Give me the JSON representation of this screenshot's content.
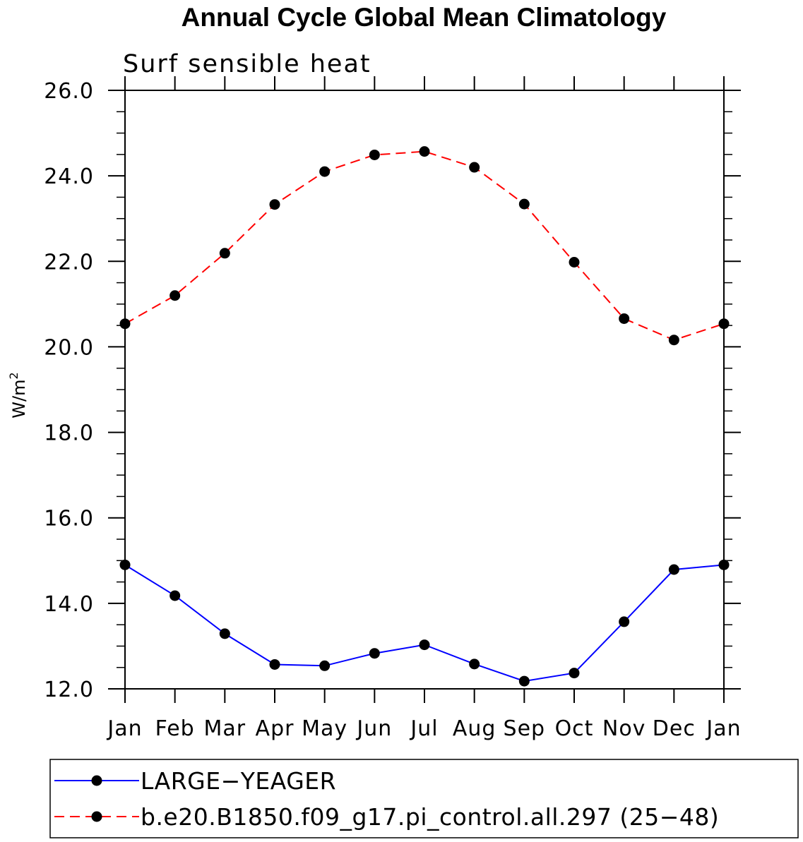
{
  "chart_data": {
    "type": "line",
    "title": "Annual Cycle Global Mean Climatology",
    "subtitle": "Surf sensible heat",
    "ylabel": "W/m",
    "ylabel_superscript": "2",
    "xlabel": "",
    "categories": [
      "Jan",
      "Feb",
      "Mar",
      "Apr",
      "May",
      "Jun",
      "Jul",
      "Aug",
      "Sep",
      "Oct",
      "Nov",
      "Dec",
      "Jan"
    ],
    "ylim": [
      12.0,
      26.0
    ],
    "yticks": [
      "12.0",
      "14.0",
      "16.0",
      "18.0",
      "20.0",
      "22.0",
      "24.0",
      "26.0"
    ],
    "grid": false,
    "legend_position": "bottom",
    "series": [
      {
        "name": "LARGE−YEAGER",
        "color": "#0000ff",
        "dash": "solid",
        "marker": "filled-circle",
        "values": [
          14.9,
          14.18,
          13.29,
          12.57,
          12.54,
          12.83,
          13.03,
          12.58,
          12.18,
          12.37,
          13.57,
          14.79,
          14.9
        ]
      },
      {
        "name": "b.e20.B1850.f09_g17.pi_control.all.297 (25−48)",
        "color": "#ff0000",
        "dash": "dashed",
        "marker": "filled-circle",
        "values": [
          20.54,
          21.2,
          22.19,
          23.33,
          24.1,
          24.49,
          24.57,
          24.2,
          23.34,
          21.98,
          20.66,
          20.16,
          20.54
        ]
      }
    ]
  }
}
